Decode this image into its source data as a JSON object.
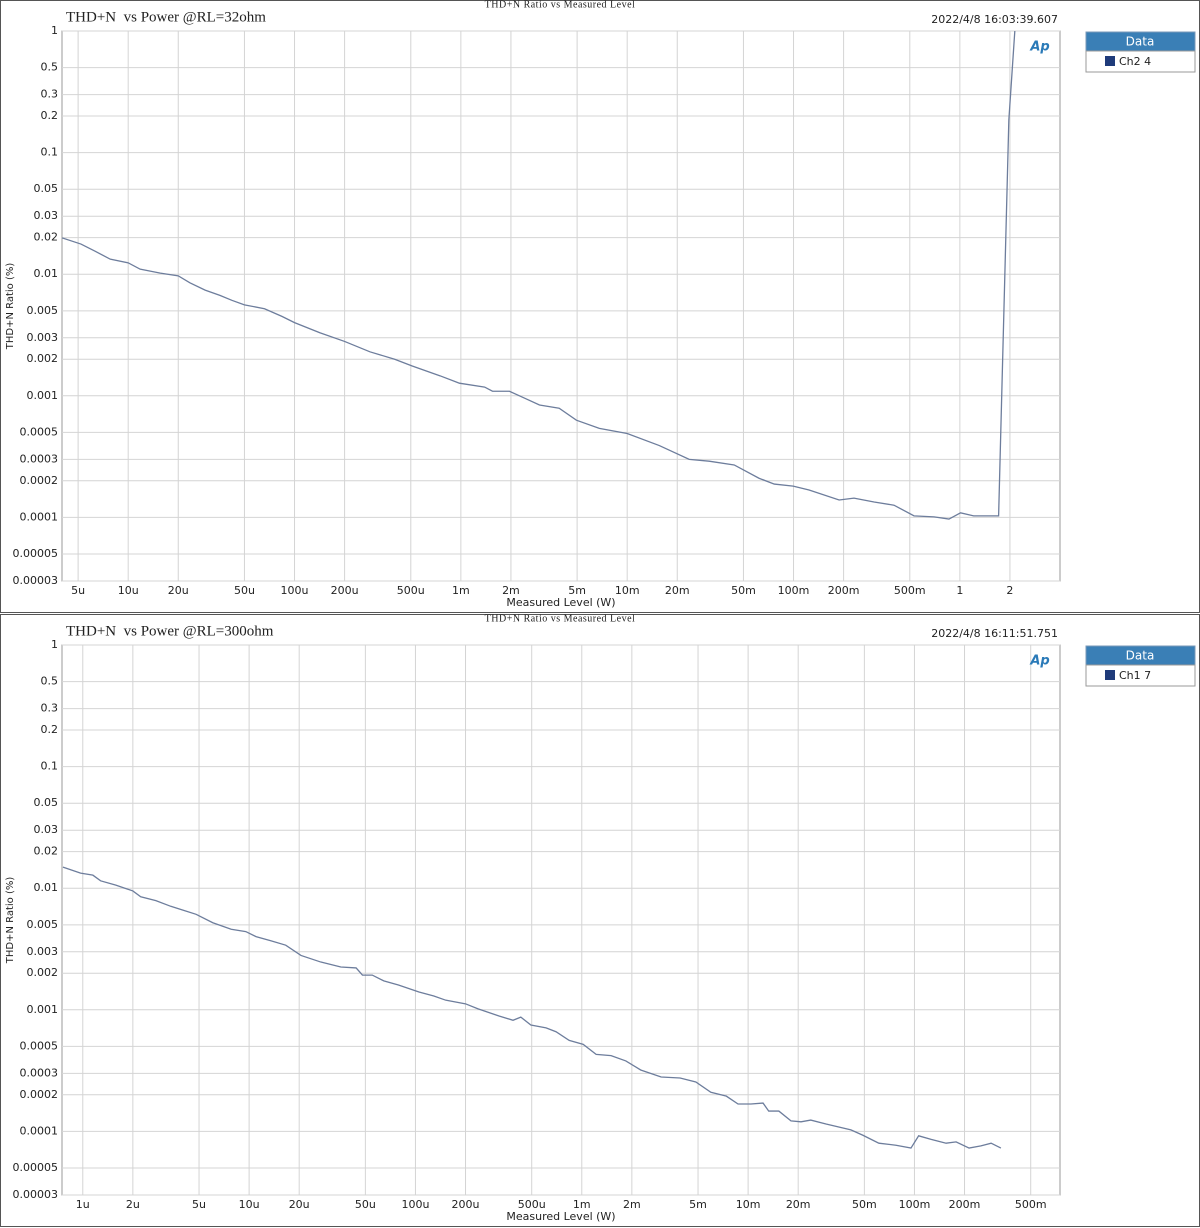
{
  "chart_data": [
    {
      "type": "line",
      "title": "THD+N Ratio vs Measured Level",
      "subtitle": "THD+N  vs Power @RL=32ohm",
      "timestamp": "2022/4/8 16:03:39.607",
      "logo": "Ap",
      "xlabel": "Measured Level (W)",
      "ylabel": "THD+N Ratio (%)",
      "legend_title": "Data",
      "xscale": "log",
      "yscale": "log",
      "grid": true,
      "xlim": [
        4e-06,
        4
      ],
      "ylim": [
        3e-05,
        1
      ],
      "xticks": [
        {
          "value": 5e-06,
          "label": "5u"
        },
        {
          "value": 1e-05,
          "label": "10u"
        },
        {
          "value": 2e-05,
          "label": "20u"
        },
        {
          "value": 5e-05,
          "label": "50u"
        },
        {
          "value": 0.0001,
          "label": "100u"
        },
        {
          "value": 0.0002,
          "label": "200u"
        },
        {
          "value": 0.0005,
          "label": "500u"
        },
        {
          "value": 0.001,
          "label": "1m"
        },
        {
          "value": 0.002,
          "label": "2m"
        },
        {
          "value": 0.005,
          "label": "5m"
        },
        {
          "value": 0.01,
          "label": "10m"
        },
        {
          "value": 0.02,
          "label": "20m"
        },
        {
          "value": 0.05,
          "label": "50m"
        },
        {
          "value": 0.1,
          "label": "100m"
        },
        {
          "value": 0.2,
          "label": "200m"
        },
        {
          "value": 0.5,
          "label": "500m"
        },
        1,
        2
      ],
      "yticks": [
        1,
        0.5,
        0.3,
        0.2,
        0.1,
        0.05,
        0.03,
        0.02,
        0.01,
        0.005,
        0.003,
        0.002,
        0.001,
        0.0005,
        0.0003,
        0.0002,
        0.0001,
        5e-05,
        3e-05
      ],
      "x": [
        4e-06,
        5.2e-06,
        6.3e-06,
        7.8e-06,
        1e-05,
        1.18e-05,
        1.56e-05,
        2e-05,
        2.35e-05,
        2.9e-05,
        3.56e-05,
        4.2e-05,
        5e-05,
        6.6e-05,
        8.4e-05,
        0.0001,
        0.000142,
        0.0002,
        0.000284,
        0.0004,
        0.00051,
        0.00075,
        0.00098,
        0.00139,
        0.00155,
        0.00196,
        0.0024,
        0.00297,
        0.0039,
        0.00495,
        0.0068,
        0.01,
        0.0156,
        0.0236,
        0.0311,
        0.044,
        0.062,
        0.0766,
        0.0995,
        0.124,
        0.188,
        0.231,
        0.305,
        0.402,
        0.53,
        0.7,
        0.86,
        1.01,
        1.21,
        1.71,
        1.97,
        2.14
      ],
      "series": [
        {
          "name": "Ch2 4",
          "color": "#6d7d9c",
          "values": [
            0.0199,
            0.0177,
            0.0155,
            0.0133,
            0.0124,
            0.011,
            0.0102,
            0.0097,
            0.0085,
            0.0074,
            0.0067,
            0.0061,
            0.0056,
            0.0052,
            0.0045,
            0.004,
            0.0033,
            0.0028,
            0.0023,
            0.002,
            0.00176,
            0.00146,
            0.00127,
            0.00118,
            0.00109,
            0.00109,
            0.00096,
            0.00084,
            0.00079,
            0.00063,
            0.00054,
            0.00049,
            0.00039,
            0.0003,
            0.00029,
            0.00027,
            0.00021,
            0.000188,
            0.000181,
            0.000168,
            0.000139,
            0.000144,
            0.000134,
            0.000126,
            0.000103,
            0.000101,
            9.7e-05,
            0.000109,
            0.000103,
            0.000103,
            0.185,
            1
          ]
        }
      ]
    },
    {
      "type": "line",
      "title": "THD+N Ratio vs Measured Level",
      "subtitle": "THD+N  vs Power @RL=300ohm",
      "timestamp": "2022/4/8 16:11:51.751",
      "logo": "Ap",
      "xlabel": "Measured Level (W)",
      "ylabel": "THD+N Ratio (%)",
      "legend_title": "Data",
      "xscale": "log",
      "yscale": "log",
      "grid": true,
      "xlim": [
        7.5e-07,
        0.75
      ],
      "ylim": [
        3e-05,
        1
      ],
      "xticks": [
        {
          "value": 1e-06,
          "label": "1u"
        },
        {
          "value": 2e-06,
          "label": "2u"
        },
        {
          "value": 5e-06,
          "label": "5u"
        },
        {
          "value": 1e-05,
          "label": "10u"
        },
        {
          "value": 2e-05,
          "label": "20u"
        },
        {
          "value": 5e-05,
          "label": "50u"
        },
        {
          "value": 0.0001,
          "label": "100u"
        },
        {
          "value": 0.0002,
          "label": "200u"
        },
        {
          "value": 0.0005,
          "label": "500u"
        },
        {
          "value": 0.001,
          "label": "1m"
        },
        {
          "value": 0.002,
          "label": "2m"
        },
        {
          "value": 0.005,
          "label": "5m"
        },
        {
          "value": 0.01,
          "label": "10m"
        },
        {
          "value": 0.02,
          "label": "20m"
        },
        {
          "value": 0.05,
          "label": "50m"
        },
        {
          "value": 0.1,
          "label": "100m"
        },
        {
          "value": 0.2,
          "label": "200m"
        },
        {
          "value": 0.5,
          "label": "500m"
        }
      ],
      "yticks": [
        1,
        0.5,
        0.3,
        0.2,
        0.1,
        0.05,
        0.03,
        0.02,
        0.01,
        0.005,
        0.003,
        0.002,
        0.001,
        0.0005,
        0.0003,
        0.0002,
        0.0001,
        5e-05,
        3e-05
      ],
      "x": [
        7.6e-07,
        9.7e-07,
        1.15e-06,
        1.28e-06,
        1.58e-06,
        2e-06,
        2.23e-06,
        2.75e-06,
        3.38e-06,
        4e-06,
        4.8e-06,
        6.05e-06,
        7.8e-06,
        9.55e-06,
        1.1e-05,
        1.35e-05,
        1.66e-05,
        2.05e-05,
        2.7e-05,
        3.56e-05,
        4.4e-05,
        4.8e-05,
        5.5e-05,
        6.45e-05,
        7.9e-05,
        0.000105,
        0.000129,
        0.000152,
        0.0002,
        0.000237,
        0.000318,
        0.000386,
        0.00043,
        0.000494,
        0.00061,
        0.0007,
        0.00084,
        0.00102,
        0.00122,
        0.0015,
        0.00184,
        0.00226,
        0.003,
        0.0039,
        0.00485,
        0.00597,
        0.0074,
        0.0087,
        0.0104,
        0.0123,
        0.0133,
        0.0153,
        0.0181,
        0.0208,
        0.0238,
        0.0294,
        0.0415,
        0.049,
        0.0611,
        0.0774,
        0.0953,
        0.106,
        0.126,
        0.155,
        0.178,
        0.213,
        0.251,
        0.289,
        0.331
      ],
      "series": [
        {
          "name": "Ch1 7",
          "color": "#6d7d9c",
          "values": [
            0.0149,
            0.0133,
            0.0128,
            0.0115,
            0.0106,
            0.0095,
            0.0085,
            0.0079,
            0.0071,
            0.0066,
            0.0061,
            0.0052,
            0.0046,
            0.0044,
            0.004,
            0.0037,
            0.0034,
            0.0028,
            0.00247,
            0.00225,
            0.00221,
            0.00193,
            0.00193,
            0.00173,
            0.0016,
            0.0014,
            0.0013,
            0.0012,
            0.00112,
            0.00102,
            0.00089,
            0.00082,
            0.00087,
            0.00075,
            0.00071,
            0.00066,
            0.00056,
            0.00052,
            0.00043,
            0.00042,
            0.00038,
            0.00032,
            0.00028,
            0.000275,
            0.000255,
            0.00021,
            0.000195,
            0.000168,
            0.000168,
            0.000171,
            0.000147,
            0.000147,
            0.000122,
            0.00012,
            0.000124,
            0.000115,
            0.000103,
            9.3e-05,
            8e-05,
            7.7e-05,
            7.3e-05,
            9.2e-05,
            8.6e-05,
            8e-05,
            8.2e-05,
            7.3e-05,
            7.6e-05,
            8e-05,
            7.3e-05
          ]
        }
      ]
    }
  ]
}
